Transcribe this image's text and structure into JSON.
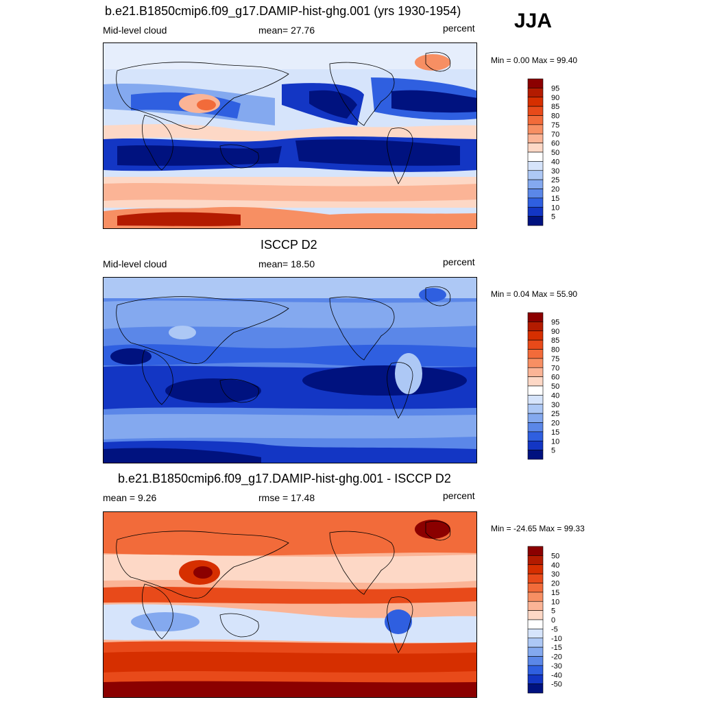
{
  "season": "JJA",
  "panels": [
    {
      "id": "model",
      "title": "b.e21.B1850cmip6.f09_g17.DAMIP-hist-ghg.001 (yrs 1930-1954)",
      "left_label": "Mid-level cloud",
      "center_label": "mean=  27.76",
      "right_label": "percent",
      "minmax": "Min =   0.00 Max =  99.40",
      "colorbar": {
        "labels": [
          "95",
          "90",
          "85",
          "80",
          "75",
          "70",
          "60",
          "50",
          "40",
          "30",
          "25",
          "20",
          "15",
          "10",
          "5"
        ],
        "colors": [
          "#8b0000",
          "#b31b00",
          "#d62f00",
          "#e84a1a",
          "#f26b3a",
          "#f78f63",
          "#fbb496",
          "#fdd8c6",
          "#ffffff",
          "#d6e4fb",
          "#adc8f5",
          "#84a9ef",
          "#5b87e8",
          "#2f5fe0",
          "#1336c4",
          "#00127f"
        ]
      }
    },
    {
      "id": "obs",
      "title": "ISCCP D2",
      "left_label": "Mid-level cloud",
      "center_label": "mean=  18.50",
      "right_label": "percent",
      "minmax": "Min =   0.04 Max =  55.90",
      "colorbar": {
        "labels": [
          "95",
          "90",
          "85",
          "80",
          "75",
          "70",
          "60",
          "50",
          "40",
          "30",
          "25",
          "20",
          "15",
          "10",
          "5"
        ],
        "colors": [
          "#8b0000",
          "#b31b00",
          "#d62f00",
          "#e84a1a",
          "#f26b3a",
          "#f78f63",
          "#fbb496",
          "#fdd8c6",
          "#ffffff",
          "#d6e4fb",
          "#adc8f5",
          "#84a9ef",
          "#5b87e8",
          "#2f5fe0",
          "#1336c4",
          "#00127f"
        ]
      }
    },
    {
      "id": "diff",
      "title": "b.e21.B1850cmip6.f09_g17.DAMIP-hist-ghg.001 - ISCCP D2",
      "left_label": "mean =   9.26",
      "center_label": "rmse =  17.48",
      "right_label": "percent",
      "minmax": "Min = -24.65 Max =  99.33",
      "colorbar": {
        "labels": [
          "50",
          "40",
          "30",
          "20",
          "15",
          "10",
          "5",
          "0",
          "-5",
          "-10",
          "-15",
          "-20",
          "-30",
          "-40",
          "-50"
        ],
        "colors": [
          "#8b0000",
          "#b31b00",
          "#d62f00",
          "#e84a1a",
          "#f26b3a",
          "#f78f63",
          "#fbb496",
          "#fdd8c6",
          "#ffffff",
          "#d6e4fb",
          "#adc8f5",
          "#84a9ef",
          "#5b87e8",
          "#2f5fe0",
          "#1336c4",
          "#00127f"
        ]
      }
    }
  ]
}
